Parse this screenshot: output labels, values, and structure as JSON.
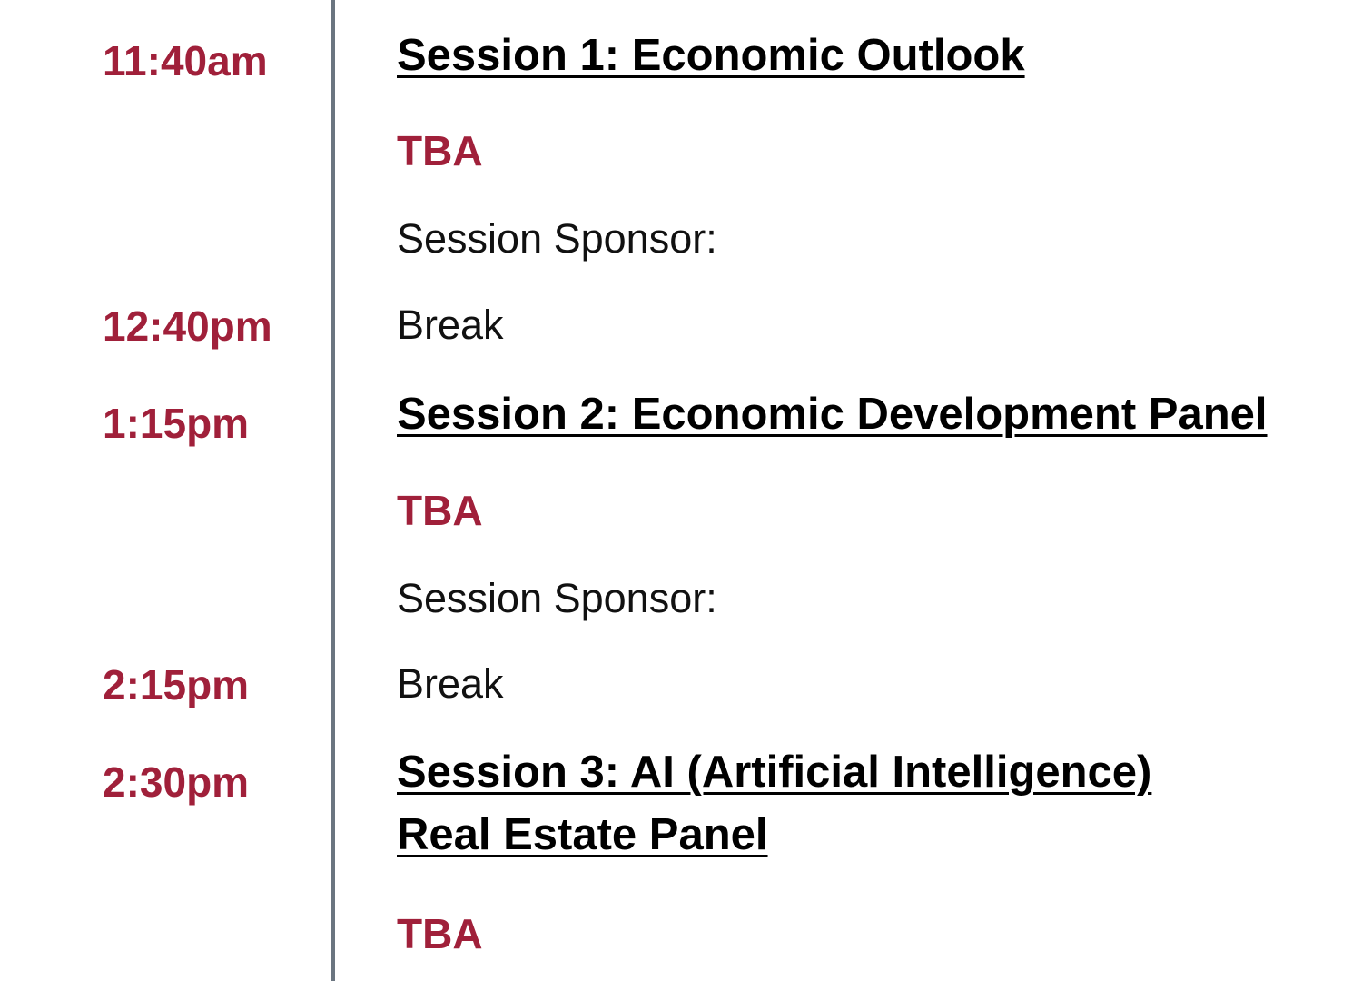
{
  "schedule": [
    {
      "time": "11:40am",
      "title_lines": [
        "Session 1: Economic Outlook"
      ],
      "speaker": "TBA",
      "sponsor": "Session Sponsor:"
    },
    {
      "time": "12:40pm",
      "label": "Break"
    },
    {
      "time": "1:15pm",
      "title_lines": [
        "Session 2: Economic Development Panel"
      ],
      "speaker": "TBA",
      "sponsor": "Session Sponsor:"
    },
    {
      "time": "2:15pm",
      "label": "Break"
    },
    {
      "time": "2:30pm",
      "title_lines": [
        "Session 3: AI (Artificial Intelligence)",
        "Real Estate Panel"
      ],
      "speaker": "TBA"
    }
  ]
}
